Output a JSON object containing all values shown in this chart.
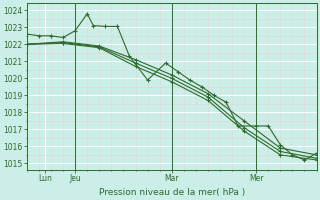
{
  "bg_color": "#cceee8",
  "grid_color": "#ffffff",
  "line_color": "#2d6a2d",
  "title": "Pression niveau de la mer( hPa )",
  "ylabel_ticks": [
    1015,
    1016,
    1017,
    1018,
    1019,
    1020,
    1021,
    1022,
    1023,
    1024
  ],
  "ylim": [
    1014.6,
    1024.4
  ],
  "xlim": [
    0,
    48
  ],
  "xtick_positions": [
    3,
    8,
    24,
    38
  ],
  "xtick_labels": [
    "Lun",
    "Jeu",
    "Mar",
    "Mer"
  ],
  "vline_positions": [
    8,
    24,
    38
  ],
  "series1_x": [
    0,
    2,
    4,
    6,
    8,
    10,
    11,
    13,
    15,
    17,
    20,
    23,
    25,
    27,
    29,
    31,
    33,
    35,
    38,
    40,
    42,
    44,
    46,
    48
  ],
  "series1_y": [
    1022.6,
    1022.5,
    1022.5,
    1022.4,
    1022.8,
    1023.8,
    1023.1,
    1023.05,
    1023.05,
    1021.3,
    1019.9,
    1020.9,
    1020.4,
    1019.9,
    1019.5,
    1019.0,
    1018.6,
    1017.2,
    1017.2,
    1017.2,
    1016.1,
    1015.5,
    1015.2,
    1015.6
  ],
  "series2_x": [
    0,
    6,
    12,
    18,
    24,
    30,
    36,
    42,
    48
  ],
  "series2_y": [
    1022.0,
    1022.15,
    1021.9,
    1021.1,
    1020.2,
    1019.1,
    1017.5,
    1015.9,
    1015.5
  ],
  "series3_x": [
    0,
    6,
    12,
    18,
    24,
    30,
    36,
    42,
    48
  ],
  "series3_y": [
    1022.0,
    1022.1,
    1021.85,
    1020.9,
    1020.0,
    1018.9,
    1017.1,
    1015.7,
    1015.3
  ],
  "series4_x": [
    0,
    6,
    12,
    18,
    24,
    30,
    36,
    42,
    48
  ],
  "series4_y": [
    1022.0,
    1022.05,
    1021.8,
    1020.7,
    1019.8,
    1018.7,
    1016.9,
    1015.5,
    1015.2
  ]
}
